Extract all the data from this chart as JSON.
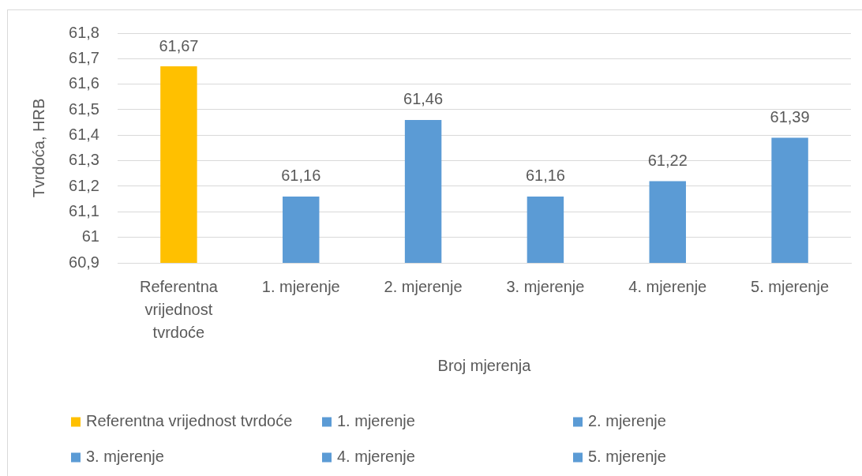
{
  "chart_data": {
    "type": "bar",
    "xlabel": "Broj mjerenja",
    "ylabel": "Tvrdoća, HRB",
    "categories": [
      "Referentna vrijednost tvrdoće",
      "1. mjerenje",
      "2. mjerenje",
      "3. mjerenje",
      "4. mjerenje",
      "5. mjerenje"
    ],
    "series": [
      {
        "name": "Referentna vrijednost tvrdoće",
        "color": "#ffc000",
        "values": [
          61.67,
          null,
          null,
          null,
          null,
          null
        ],
        "value_labels": [
          "61,67",
          null,
          null,
          null,
          null,
          null
        ]
      },
      {
        "name": "1. mjerenje",
        "color": "#5b9bd5",
        "values": [
          null,
          61.16,
          null,
          null,
          null,
          null
        ],
        "value_labels": [
          null,
          "61,16",
          null,
          null,
          null,
          null
        ]
      },
      {
        "name": "2. mjerenje",
        "color": "#5b9bd5",
        "values": [
          null,
          null,
          61.46,
          null,
          null,
          null
        ],
        "value_labels": [
          null,
          null,
          "61,46",
          null,
          null,
          null
        ]
      },
      {
        "name": "3. mjerenje",
        "color": "#5b9bd5",
        "values": [
          null,
          null,
          null,
          61.16,
          null,
          null
        ],
        "value_labels": [
          null,
          null,
          null,
          "61,16",
          null,
          null
        ]
      },
      {
        "name": "4. mjerenje",
        "color": "#5b9bd5",
        "values": [
          null,
          null,
          null,
          null,
          61.22,
          null
        ],
        "value_labels": [
          null,
          null,
          null,
          null,
          "61,22",
          null
        ]
      },
      {
        "name": "5. mjerenje",
        "color": "#5b9bd5",
        "values": [
          null,
          null,
          null,
          null,
          null,
          61.39
        ],
        "value_labels": [
          null,
          null,
          null,
          null,
          null,
          "61,39"
        ]
      }
    ],
    "ylim": [
      60.9,
      61.8
    ],
    "yticks": [
      {
        "value": 60.9,
        "label": "60,9"
      },
      61,
      {
        "value": 61.1,
        "label": "61,1"
      },
      {
        "value": 61.2,
        "label": "61,2"
      },
      {
        "value": 61.3,
        "label": "61,3"
      },
      {
        "value": 61.4,
        "label": "61,4"
      },
      {
        "value": 61.5,
        "label": "61,5"
      },
      {
        "value": 61.6,
        "label": "61,6"
      },
      {
        "value": 61.7,
        "label": "61,7"
      },
      {
        "value": 61.8,
        "label": "61,8"
      }
    ],
    "grid": "y",
    "legend": "bottom"
  }
}
